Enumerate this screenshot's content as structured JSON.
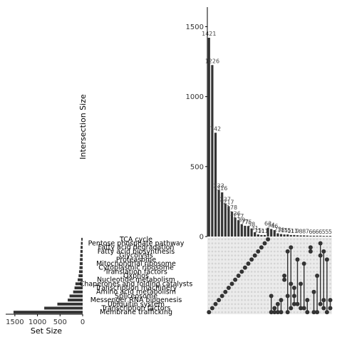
{
  "chart_data": {
    "type": "upset",
    "intersections_panel": {
      "ylabel": "Intersection Size",
      "ylim": [
        0,
        1640
      ],
      "yticks": [
        0,
        500,
        1000,
        1500
      ],
      "values": [
        1421,
        1226,
        742,
        333,
        316,
        237,
        217,
        178,
        136,
        117,
        89,
        77,
        75,
        58,
        31,
        15,
        11,
        11,
        63,
        54,
        46,
        23,
        18,
        15,
        15,
        11,
        11,
        9,
        8,
        8,
        7,
        6,
        6,
        6,
        6,
        5,
        5,
        5
      ],
      "labels": [
        "1421",
        "1226",
        "742",
        "333",
        "316",
        "237",
        "217",
        "178",
        "136",
        "117",
        "89",
        "77",
        "75",
        "58",
        "31",
        "15",
        "11",
        "11",
        "63",
        "54",
        "46",
        "23",
        "18",
        "15",
        "15",
        "11",
        "11",
        "9",
        "8",
        "8",
        "7",
        "6",
        "6",
        "6",
        "6",
        "5",
        "5",
        "5"
      ]
    },
    "sets_panel": {
      "xlabel": "Set Size",
      "xlim": [
        0,
        1640
      ],
      "xticks": [
        0,
        500,
        1000,
        1500
      ],
      "sets": [
        "TCA cycle",
        "Pentose phosphate pathway",
        "Fatty acid degradation",
        "Fatty acid biosynthesis",
        "Glycolysis",
        "Proteasome",
        "Mitochondrial ribosome",
        "Cytoplasmic ribosome",
        "Translation factors",
        "Oxphos",
        "Nucleotide metabolism",
        "Chaperones and folding catalysts",
        "Transcription machinery",
        "Amino acid metabolism",
        "Spliceosome",
        "Messenger RNA biogenesis",
        "Ubiquitin system",
        "Transcription factors",
        "Membrane trafficking"
      ],
      "sizes": [
        30,
        38,
        45,
        50,
        55,
        60,
        65,
        70,
        80,
        90,
        110,
        160,
        180,
        210,
        290,
        330,
        560,
        850,
        1530
      ]
    },
    "matrix": {
      "columns": [
        [
          18
        ],
        [
          17
        ],
        [
          16
        ],
        [
          15
        ],
        [
          14
        ],
        [
          13
        ],
        [
          12
        ],
        [
          11
        ],
        [
          10
        ],
        [
          9
        ],
        [
          8
        ],
        [
          7
        ],
        [
          6
        ],
        [
          5
        ],
        [
          4
        ],
        [
          3
        ],
        [
          2
        ],
        [
          1
        ],
        [
          0
        ],
        [
          14,
          18
        ],
        [
          17,
          18
        ],
        [
          16,
          18
        ],
        [
          15,
          18
        ],
        [
          9,
          10
        ],
        [
          3,
          14,
          18
        ],
        [
          2,
          11,
          17
        ],
        [
          12,
          14,
          16
        ],
        [
          5,
          16
        ],
        [
          11,
          17
        ],
        [
          6,
          17
        ],
        [
          15,
          18
        ],
        [
          2,
          3
        ],
        [
          13,
          18
        ],
        [
          9,
          18
        ],
        [
          1,
          4,
          16
        ],
        [
          3,
          15,
          17
        ],
        [
          5,
          18
        ],
        [
          15,
          17
        ]
      ]
    }
  }
}
